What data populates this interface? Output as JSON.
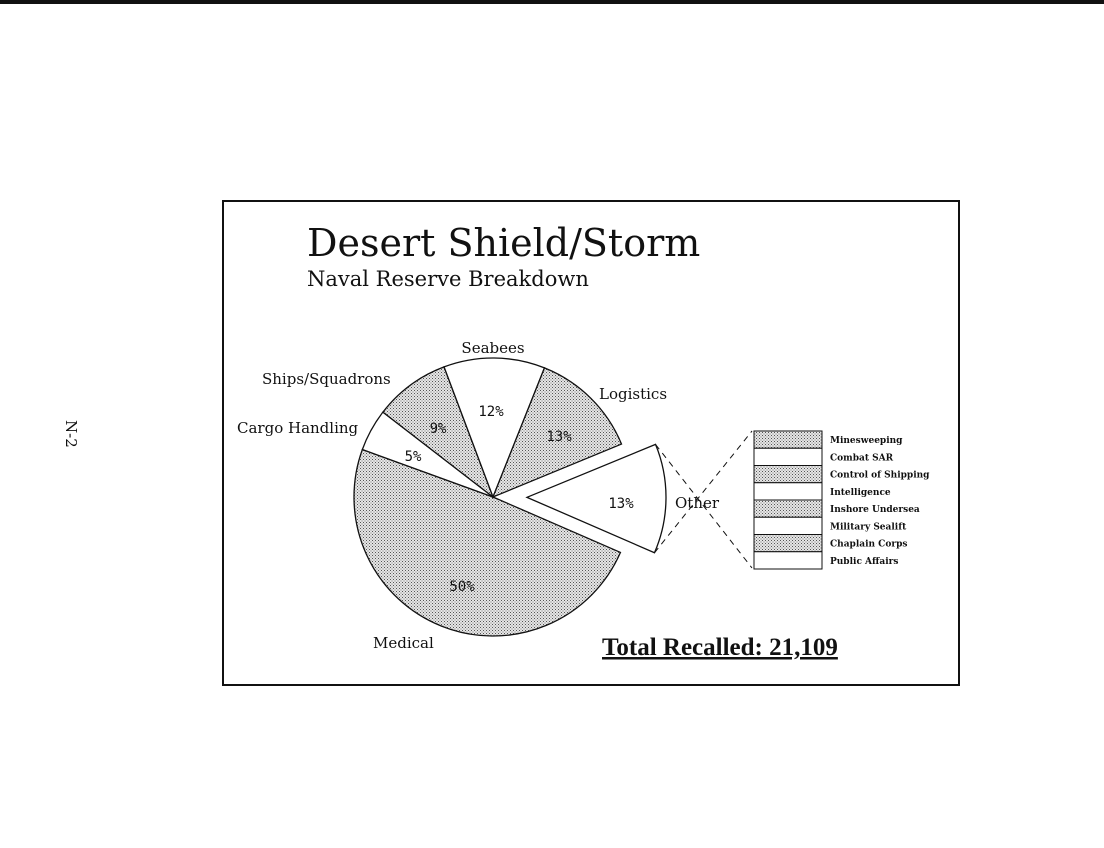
{
  "page_label": "N-2",
  "chart_data": {
    "type": "pie",
    "title": "Desert Shield/Storm",
    "subtitle": "Naval Reserve Breakdown",
    "slices": [
      {
        "label": "Medical",
        "value": 50,
        "display": "50%",
        "shaded": true
      },
      {
        "label": "Cargo Handling",
        "value": 5,
        "display": "5%",
        "shaded": false
      },
      {
        "label": "Ships/Squadrons",
        "value": 9,
        "display": "9%",
        "shaded": true
      },
      {
        "label": "Seabees",
        "value": 12,
        "display": "12%",
        "shaded": false
      },
      {
        "label": "Logistics",
        "value": 13,
        "display": "13%",
        "shaded": true
      },
      {
        "label": "Other",
        "value": 13,
        "display": "13%",
        "shaded": false,
        "exploded": true
      }
    ],
    "other_breakdown": [
      {
        "label": "Minesweeping",
        "shaded": true
      },
      {
        "label": "Combat SAR",
        "shaded": false
      },
      {
        "label": "Control of Shipping",
        "shaded": true
      },
      {
        "label": "Intelligence",
        "shaded": false
      },
      {
        "label": "Inshore Undersea",
        "shaded": true
      },
      {
        "label": "Military Sealift",
        "shaded": false
      },
      {
        "label": "Chaplain Corps",
        "shaded": true
      },
      {
        "label": "Public Affairs",
        "shaded": false
      }
    ],
    "total_label": "Total Recalled: 21,109"
  }
}
